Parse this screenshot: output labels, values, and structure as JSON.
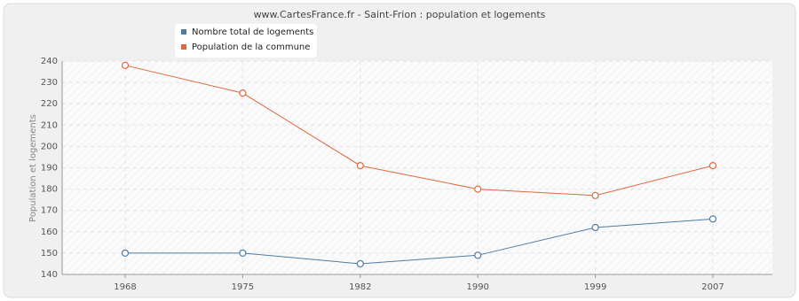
{
  "chart_data": {
    "type": "line",
    "title": "www.CartesFrance.fr - Saint-Frion : population et logements",
    "y_label": "Population et logements",
    "categories": [
      "1968",
      "1975",
      "1982",
      "1990",
      "1999",
      "2007"
    ],
    "series": [
      {
        "name": "Nombre total de logements",
        "color": "#4f7ba3",
        "values": [
          150,
          150,
          145,
          149,
          162,
          166
        ]
      },
      {
        "name": "Population de la commune",
        "color": "#e0683f",
        "values": [
          238,
          225,
          191,
          180,
          177,
          191
        ]
      }
    ],
    "ylim": [
      140,
      240
    ],
    "yticks": [
      140,
      150,
      160,
      170,
      180,
      190,
      200,
      210,
      220,
      230,
      240
    ],
    "grid": true
  }
}
